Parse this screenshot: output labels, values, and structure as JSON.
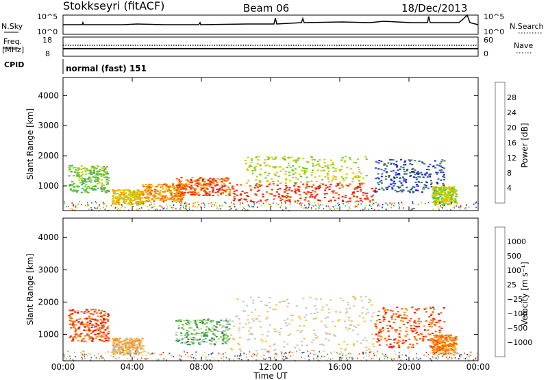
{
  "header": {
    "radar": "Stokkseyri (fitACF)",
    "beam": "Beam 06",
    "date": "18/Dec/2013"
  },
  "noise_panel": {
    "left_label": "N.Sky",
    "left_ticks": [
      "10^5",
      "10^0"
    ],
    "right_ticks": [
      "10^5",
      "10^0"
    ],
    "right_label": "N.Search"
  },
  "freq_panel": {
    "left_label_1": "Freq.",
    "left_label_2": "[MHz]",
    "left_ticks": [
      "18",
      "8"
    ],
    "right_ticks": [
      "60",
      "0"
    ],
    "right_label": "Nave"
  },
  "cpid": {
    "label": "CPID",
    "value": "normal (fast) 151"
  },
  "chart_data": [
    {
      "type": "heatmap",
      "id": "power",
      "ylabel": "Slant Range [km]",
      "yticks": [
        "4000",
        "3000",
        "2000",
        "1000"
      ],
      "ylim": [
        180,
        4600
      ],
      "xlim": [
        0,
        24
      ],
      "colorbar_label": "Power [dB]",
      "colorbar_ticks": [
        "28",
        "24",
        "20",
        "16",
        "12",
        "8",
        "4"
      ],
      "colors": [
        "#1a1aff",
        "#2e4fbf",
        "#3c7a5e",
        "#4da86a",
        "#56cc2e",
        "#b8d400",
        "#f0c000",
        "#ff9a00",
        "#ff5a00",
        "#ff1a00"
      ],
      "echo_regions": [
        {
          "t": [
            0.3,
            2.6
          ],
          "r": [
            800,
            1700
          ],
          "level": 4
        },
        {
          "t": [
            2.8,
            4.6
          ],
          "r": [
            400,
            900
          ],
          "level": 6
        },
        {
          "t": [
            4.5,
            7.0
          ],
          "r": [
            500,
            1100
          ],
          "level": 7
        },
        {
          "t": [
            6.5,
            9.6
          ],
          "r": [
            700,
            1300
          ],
          "level": 8
        },
        {
          "t": [
            9.6,
            18.0
          ],
          "r": [
            500,
            1100
          ],
          "level": 9
        },
        {
          "t": [
            10.5,
            17.5
          ],
          "r": [
            1100,
            2000
          ],
          "level": 5
        },
        {
          "t": [
            18.0,
            22.0
          ],
          "r": [
            800,
            1900
          ],
          "level": 1
        },
        {
          "t": [
            21.3,
            22.7
          ],
          "r": [
            400,
            1000
          ],
          "level": 5
        }
      ]
    },
    {
      "type": "heatmap",
      "id": "velocity",
      "ylabel": "Slant Range [km]",
      "yticks": [
        "4000",
        "3000",
        "2000",
        "1000"
      ],
      "ylim": [
        180,
        4600
      ],
      "xlim": [
        0,
        24
      ],
      "xticks": [
        "00:00",
        "04:00",
        "08:00",
        "12:00",
        "16:00",
        "20:00",
        "00:00"
      ],
      "xlabel": "Time UT",
      "colorbar_label": "Velocity [m s⁻¹]",
      "colorbar_ticks": [
        "1000",
        "500",
        "100",
        "25",
        "−25",
        "−100",
        "−500",
        "−1000"
      ],
      "colors": [
        "#ff0000",
        "#ff5a00",
        "#ff8a1a",
        "#ffc040",
        "#c8c8c0",
        "#c8c8c0",
        "#66cc33",
        "#2f8f4a",
        "#2e5fa8",
        "#2020d0"
      ],
      "echo_regions": [
        {
          "t": [
            0.3,
            2.6
          ],
          "r": [
            800,
            1800
          ],
          "level": 1
        },
        {
          "t": [
            2.8,
            4.6
          ],
          "r": [
            400,
            900
          ],
          "level": 3
        },
        {
          "t": [
            6.5,
            9.6
          ],
          "r": [
            700,
            1500
          ],
          "level": 6
        },
        {
          "t": [
            9.6,
            18.0
          ],
          "r": [
            500,
            2200
          ],
          "level": 4
        },
        {
          "t": [
            18.0,
            22.0
          ],
          "r": [
            600,
            1900
          ],
          "level": 1
        },
        {
          "t": [
            21.3,
            22.7
          ],
          "r": [
            400,
            1000
          ],
          "level": 2
        }
      ]
    }
  ]
}
